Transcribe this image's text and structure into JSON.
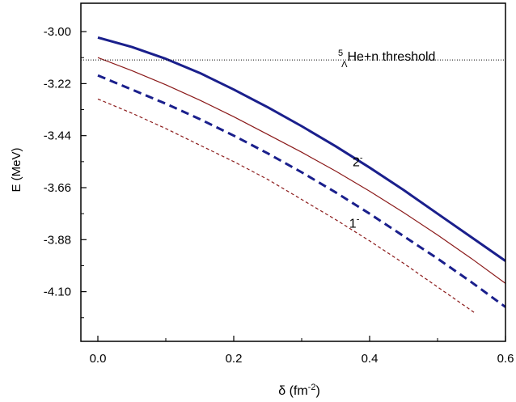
{
  "chart_data": {
    "type": "line",
    "xlabel": "δ (fm",
    "xlabel_exp": "-2",
    "xlabel_close": ")",
    "ylabel": "E (MeV)",
    "xlim": [
      -0.025,
      0.6
    ],
    "ylim": [
      -4.31,
      -2.88
    ],
    "xticks": [
      0.0,
      0.2,
      0.4,
      0.6
    ],
    "xtick_labels": [
      "0.0",
      "0.2",
      "0.4",
      "0.6"
    ],
    "yticks": [
      -3.0,
      -3.22,
      -3.44,
      -3.66,
      -3.88,
      -4.1
    ],
    "ytick_labels": [
      "-3.00",
      "-3.22",
      "-3.44",
      "-3.66",
      "-3.88",
      "-4.10"
    ],
    "grid": false,
    "threshold": {
      "y": -3.12,
      "label_sup": "5",
      "label_sub": "Λ",
      "label_text": "He+n threshold"
    },
    "annotations": [
      {
        "base": "2",
        "sup": "-",
        "x": 0.375,
        "y": -3.57
      },
      {
        "base": "1",
        "sup": "-",
        "x": 0.37,
        "y": -3.83
      }
    ],
    "series": [
      {
        "color": "#1a1f8c",
        "style": "solid",
        "width": 3,
        "x": [
          0.0,
          0.05,
          0.1,
          0.15,
          0.2,
          0.25,
          0.3,
          0.35,
          0.4,
          0.45,
          0.5,
          0.55,
          0.6
        ],
        "y": [
          -3.025,
          -3.065,
          -3.115,
          -3.175,
          -3.245,
          -3.32,
          -3.4,
          -3.485,
          -3.575,
          -3.67,
          -3.77,
          -3.87,
          -3.97
        ]
      },
      {
        "color": "#8b1a1a",
        "style": "solid",
        "width": 1.2,
        "x": [
          0.0,
          0.05,
          0.1,
          0.15,
          0.2,
          0.25,
          0.3,
          0.35,
          0.4,
          0.45,
          0.5,
          0.55,
          0.6
        ],
        "y": [
          -3.11,
          -3.165,
          -3.225,
          -3.29,
          -3.36,
          -3.435,
          -3.51,
          -3.59,
          -3.675,
          -3.765,
          -3.86,
          -3.96,
          -4.065
        ]
      },
      {
        "color": "#1a1f8c",
        "style": "dashed",
        "width": 3,
        "x": [
          0.0,
          0.05,
          0.1,
          0.15,
          0.2,
          0.25,
          0.3,
          0.35,
          0.4,
          0.45,
          0.5,
          0.55,
          0.6
        ],
        "y": [
          -3.185,
          -3.245,
          -3.305,
          -3.37,
          -3.44,
          -3.515,
          -3.595,
          -3.68,
          -3.77,
          -3.865,
          -3.96,
          -4.06,
          -4.165
        ]
      },
      {
        "color": "#8b1a1a",
        "style": "dashed",
        "width": 1.2,
        "x": [
          0.0,
          0.05,
          0.1,
          0.15,
          0.2,
          0.25,
          0.3,
          0.35,
          0.4,
          0.45,
          0.5,
          0.555
        ],
        "y": [
          -3.285,
          -3.345,
          -3.41,
          -3.48,
          -3.55,
          -3.625,
          -3.71,
          -3.795,
          -3.885,
          -3.98,
          -4.08,
          -4.19
        ]
      }
    ]
  }
}
